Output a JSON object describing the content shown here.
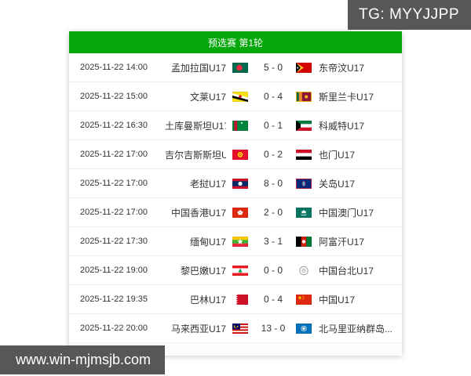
{
  "tg_badge": {
    "label": "TG: MYYJJPP"
  },
  "url_badge": {
    "label": "www.win-mjmsjb.com"
  },
  "colors": {
    "header_green": "#04a80a",
    "badge_gray": "#575757",
    "row_text": "#333333",
    "separator": "#ededed"
  },
  "table": {
    "header": "预选赛 第1轮",
    "matches": [
      {
        "date": "2025-11-22 14:00",
        "home": "孟加拉国U17",
        "home_flag": "bangladesh",
        "score": "5 - 0",
        "away_flag": "east-timor",
        "away": "东帝汶U17"
      },
      {
        "date": "2025-11-22 15:00",
        "home": "文莱U17",
        "home_flag": "brunei",
        "score": "0 - 4",
        "away_flag": "sri-lanka",
        "away": "斯里兰卡U17"
      },
      {
        "date": "2025-11-22 16:30",
        "home": "土库曼斯坦U17",
        "home_flag": "turkmenistan",
        "score": "0 - 1",
        "away_flag": "kuwait",
        "away": "科威特U17"
      },
      {
        "date": "2025-11-22 17:00",
        "home": "吉尔吉斯斯坦U17",
        "home_flag": "kyrgyzstan",
        "score": "0 - 2",
        "away_flag": "yemen",
        "away": "也门U17"
      },
      {
        "date": "2025-11-22 17:00",
        "home": "老挝U17",
        "home_flag": "laos",
        "score": "8 - 0",
        "away_flag": "guam",
        "away": "关岛U17"
      },
      {
        "date": "2025-11-22 17:00",
        "home": "中国香港U17",
        "home_flag": "hong-kong",
        "score": "2 - 0",
        "away_flag": "macau",
        "away": "中国澳门U17"
      },
      {
        "date": "2025-11-22 17:30",
        "home": "缅甸U17",
        "home_flag": "myanmar",
        "score": "3 - 1",
        "away_flag": "afghanistan",
        "away": "阿富汗U17"
      },
      {
        "date": "2025-11-22 19:00",
        "home": "黎巴嫩U17",
        "home_flag": "lebanon",
        "score": "0 - 0",
        "away_flag": "chinese-taipei",
        "away": "中国台北U17"
      },
      {
        "date": "2025-11-22 19:35",
        "home": "巴林U17",
        "home_flag": "bahrain",
        "score": "0 - 4",
        "away_flag": "china",
        "away": "中国U17"
      },
      {
        "date": "2025-11-22 20:00",
        "home": "马来西亚U17",
        "home_flag": "malaysia",
        "score": "13 - 0",
        "away_flag": "n-mariana",
        "away": "北马里亚纳群岛..."
      }
    ]
  }
}
